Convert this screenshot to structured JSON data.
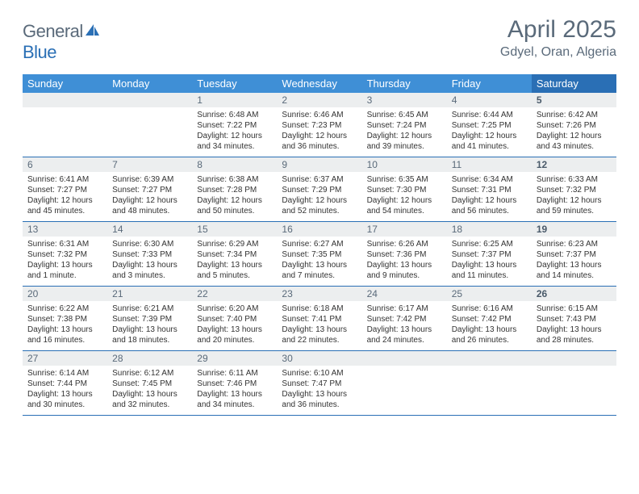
{
  "brand": {
    "part1": "General",
    "part2": "Blue"
  },
  "title": "April 2025",
  "location": "Gdyel, Oran, Algeria",
  "colors": {
    "header_bg": "#3f8fd6",
    "header_sat_bg": "#2a6fb5",
    "date_bar_bg": "#eceeef",
    "text_muted": "#5a6a7a",
    "rule": "#2a6fb5"
  },
  "day_names": [
    "Sunday",
    "Monday",
    "Tuesday",
    "Wednesday",
    "Thursday",
    "Friday",
    "Saturday"
  ],
  "weeks": [
    [
      null,
      null,
      {
        "d": "1",
        "sr": "6:48 AM",
        "ss": "7:22 PM",
        "dl": "12 hours and 34 minutes."
      },
      {
        "d": "2",
        "sr": "6:46 AM",
        "ss": "7:23 PM",
        "dl": "12 hours and 36 minutes."
      },
      {
        "d": "3",
        "sr": "6:45 AM",
        "ss": "7:24 PM",
        "dl": "12 hours and 39 minutes."
      },
      {
        "d": "4",
        "sr": "6:44 AM",
        "ss": "7:25 PM",
        "dl": "12 hours and 41 minutes."
      },
      {
        "d": "5",
        "sr": "6:42 AM",
        "ss": "7:26 PM",
        "dl": "12 hours and 43 minutes."
      }
    ],
    [
      {
        "d": "6",
        "sr": "6:41 AM",
        "ss": "7:27 PM",
        "dl": "12 hours and 45 minutes."
      },
      {
        "d": "7",
        "sr": "6:39 AM",
        "ss": "7:27 PM",
        "dl": "12 hours and 48 minutes."
      },
      {
        "d": "8",
        "sr": "6:38 AM",
        "ss": "7:28 PM",
        "dl": "12 hours and 50 minutes."
      },
      {
        "d": "9",
        "sr": "6:37 AM",
        "ss": "7:29 PM",
        "dl": "12 hours and 52 minutes."
      },
      {
        "d": "10",
        "sr": "6:35 AM",
        "ss": "7:30 PM",
        "dl": "12 hours and 54 minutes."
      },
      {
        "d": "11",
        "sr": "6:34 AM",
        "ss": "7:31 PM",
        "dl": "12 hours and 56 minutes."
      },
      {
        "d": "12",
        "sr": "6:33 AM",
        "ss": "7:32 PM",
        "dl": "12 hours and 59 minutes."
      }
    ],
    [
      {
        "d": "13",
        "sr": "6:31 AM",
        "ss": "7:32 PM",
        "dl": "13 hours and 1 minute."
      },
      {
        "d": "14",
        "sr": "6:30 AM",
        "ss": "7:33 PM",
        "dl": "13 hours and 3 minutes."
      },
      {
        "d": "15",
        "sr": "6:29 AM",
        "ss": "7:34 PM",
        "dl": "13 hours and 5 minutes."
      },
      {
        "d": "16",
        "sr": "6:27 AM",
        "ss": "7:35 PM",
        "dl": "13 hours and 7 minutes."
      },
      {
        "d": "17",
        "sr": "6:26 AM",
        "ss": "7:36 PM",
        "dl": "13 hours and 9 minutes."
      },
      {
        "d": "18",
        "sr": "6:25 AM",
        "ss": "7:37 PM",
        "dl": "13 hours and 11 minutes."
      },
      {
        "d": "19",
        "sr": "6:23 AM",
        "ss": "7:37 PM",
        "dl": "13 hours and 14 minutes."
      }
    ],
    [
      {
        "d": "20",
        "sr": "6:22 AM",
        "ss": "7:38 PM",
        "dl": "13 hours and 16 minutes."
      },
      {
        "d": "21",
        "sr": "6:21 AM",
        "ss": "7:39 PM",
        "dl": "13 hours and 18 minutes."
      },
      {
        "d": "22",
        "sr": "6:20 AM",
        "ss": "7:40 PM",
        "dl": "13 hours and 20 minutes."
      },
      {
        "d": "23",
        "sr": "6:18 AM",
        "ss": "7:41 PM",
        "dl": "13 hours and 22 minutes."
      },
      {
        "d": "24",
        "sr": "6:17 AM",
        "ss": "7:42 PM",
        "dl": "13 hours and 24 minutes."
      },
      {
        "d": "25",
        "sr": "6:16 AM",
        "ss": "7:42 PM",
        "dl": "13 hours and 26 minutes."
      },
      {
        "d": "26",
        "sr": "6:15 AM",
        "ss": "7:43 PM",
        "dl": "13 hours and 28 minutes."
      }
    ],
    [
      {
        "d": "27",
        "sr": "6:14 AM",
        "ss": "7:44 PM",
        "dl": "13 hours and 30 minutes."
      },
      {
        "d": "28",
        "sr": "6:12 AM",
        "ss": "7:45 PM",
        "dl": "13 hours and 32 minutes."
      },
      {
        "d": "29",
        "sr": "6:11 AM",
        "ss": "7:46 PM",
        "dl": "13 hours and 34 minutes."
      },
      {
        "d": "30",
        "sr": "6:10 AM",
        "ss": "7:47 PM",
        "dl": "13 hours and 36 minutes."
      },
      null,
      null,
      null
    ]
  ],
  "labels": {
    "sunrise": "Sunrise: ",
    "sunset": "Sunset: ",
    "daylight": "Daylight: "
  }
}
